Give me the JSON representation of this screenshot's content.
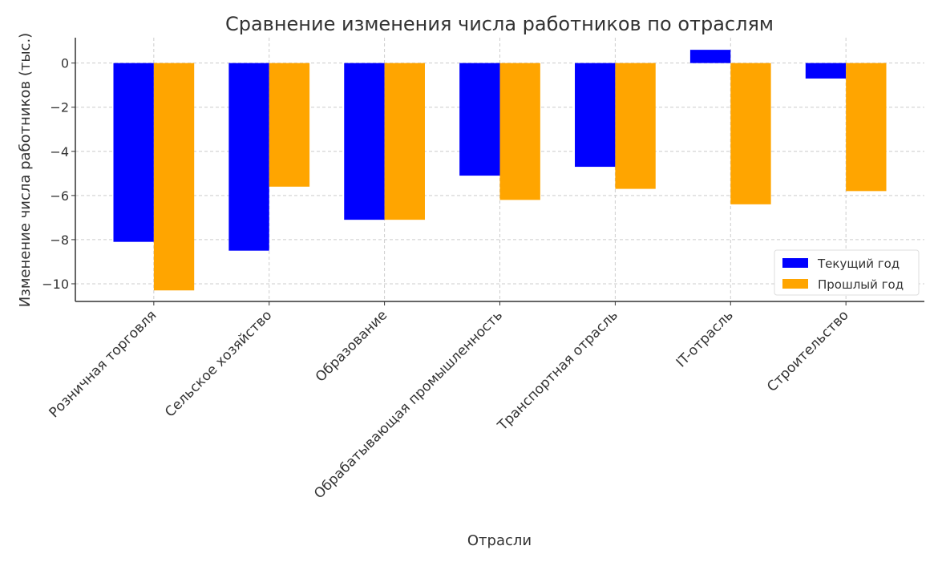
{
  "chart_data": {
    "type": "bar",
    "title": "Сравнение изменения числа работников по отраслям",
    "xlabel": "Отрасли",
    "ylabel": "Изменение числа работников (тыс.)",
    "categories": [
      "Розничная торговля",
      "Сельское хозяйство",
      "Образование",
      "Обрабатывающая промышленность",
      "Транспортная отрасль",
      "IT-отрасль",
      "Строительство"
    ],
    "series": [
      {
        "name": "Текущий год",
        "color": "#0000ff",
        "values": [
          -8.1,
          -8.5,
          -7.1,
          -5.1,
          -4.7,
          0.6,
          -0.7
        ]
      },
      {
        "name": "Прошлый год",
        "color": "#ffa500",
        "values": [
          -10.3,
          -5.6,
          -7.1,
          -6.2,
          -5.7,
          -6.4,
          -5.8
        ]
      }
    ],
    "ylim": [
      -10.8,
      1.15
    ],
    "yticks": [
      0,
      -2,
      -4,
      -6,
      -8,
      -10
    ],
    "ytick_labels": [
      "0",
      "−2",
      "−4",
      "−6",
      "−8",
      "−10"
    ],
    "grid": true,
    "legend_position": "lower-right"
  }
}
